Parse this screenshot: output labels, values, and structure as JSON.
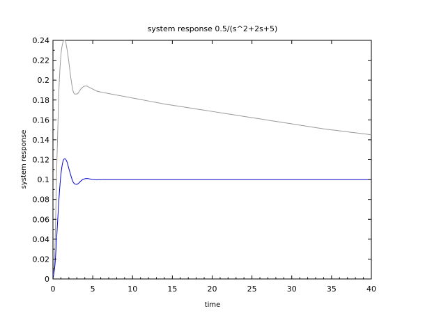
{
  "chart_data": {
    "type": "line",
    "title": "system response 0.5/(s^2+2s+5)",
    "xlabel": "time",
    "ylabel": "system response",
    "xlim": [
      0,
      40
    ],
    "ylim": [
      0,
      0.24
    ],
    "grid": false,
    "xticks": [
      "0",
      "5",
      "10",
      "15",
      "20",
      "25",
      "30",
      "35",
      "40"
    ],
    "yticks": [
      "0",
      "0.02",
      "0.04",
      "0.06",
      "0.08",
      "0.1",
      "0.12",
      "0.14",
      "0.16",
      "0.18",
      "0.2",
      "0.22",
      "0.24"
    ],
    "series": [
      {
        "color": "#999999",
        "x": [
          0,
          0.25,
          0.5,
          0.75,
          1.0,
          1.25,
          1.5,
          1.75,
          2.0,
          2.25,
          2.5,
          2.75,
          3.0,
          3.25,
          3.5,
          3.75,
          4.0,
          4.25,
          4.5,
          4.75,
          5.0,
          5.5,
          6.0,
          7,
          8,
          9,
          10,
          12,
          14,
          16,
          18,
          20,
          22,
          24,
          26,
          28,
          30,
          32,
          34,
          36,
          38,
          40
        ],
        "y": [
          0,
          0.03,
          0.12,
          0.19,
          0.225,
          0.238,
          0.24,
          0.232,
          0.218,
          0.202,
          0.19,
          0.186,
          0.186,
          0.188,
          0.191,
          0.193,
          0.194,
          0.194,
          0.193,
          0.192,
          0.191,
          0.189,
          0.188,
          0.1865,
          0.185,
          0.1835,
          0.182,
          0.179,
          0.176,
          0.1735,
          0.171,
          0.1685,
          0.166,
          0.1635,
          0.161,
          0.1585,
          0.156,
          0.1535,
          0.151,
          0.149,
          0.147,
          0.145
        ]
      },
      {
        "color": "#0000cc",
        "x": [
          0,
          0.25,
          0.5,
          0.75,
          1.0,
          1.25,
          1.5,
          1.75,
          2.0,
          2.25,
          2.5,
          2.75,
          3.0,
          3.25,
          3.5,
          3.75,
          4.0,
          4.25,
          4.5,
          4.75,
          5.0,
          5.5,
          6.0,
          6.5,
          7,
          10,
          15,
          20,
          25,
          30,
          35,
          40
        ],
        "y": [
          0,
          0.014,
          0.046,
          0.08,
          0.105,
          0.118,
          0.121,
          0.118,
          0.111,
          0.104,
          0.098,
          0.0955,
          0.0952,
          0.0965,
          0.0985,
          0.1,
          0.1008,
          0.101,
          0.1008,
          0.1004,
          0.1001,
          0.0998,
          0.0999,
          0.1,
          0.1,
          0.1,
          0.1,
          0.1,
          0.1,
          0.1,
          0.1,
          0.1
        ]
      }
    ]
  }
}
